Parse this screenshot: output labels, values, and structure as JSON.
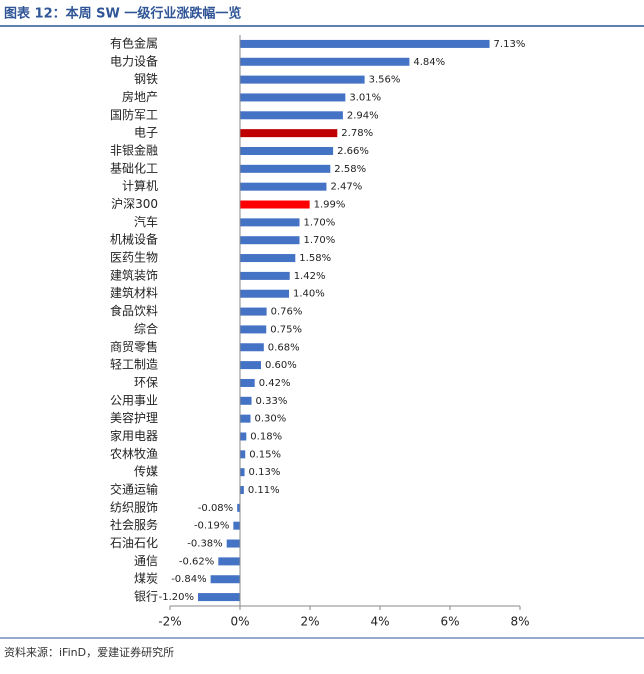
{
  "chart_data": {
    "type": "bar",
    "title": "图表 12：本周 SW 一级行业涨跌幅一览",
    "source": "资料来源：iFinD，爱建证券研究所",
    "categories": [
      "有色金属",
      "电力设备",
      "钢铁",
      "房地产",
      "国防军工",
      "电子",
      "非银金融",
      "基础化工",
      "计算机",
      "沪深300",
      "汽车",
      "机械设备",
      "医药生物",
      "建筑装饰",
      "建筑材料",
      "食品饮料",
      "综合",
      "商贸零售",
      "轻工制造",
      "环保",
      "公用事业",
      "美容护理",
      "家用电器",
      "农林牧渔",
      "传媒",
      "交通运输",
      "纺织服饰",
      "社会服务",
      "石油石化",
      "通信",
      "煤炭",
      "银行"
    ],
    "values": [
      7.13,
      4.84,
      3.56,
      3.01,
      2.94,
      2.78,
      2.66,
      2.58,
      2.47,
      1.99,
      1.7,
      1.7,
      1.58,
      1.42,
      1.4,
      0.76,
      0.75,
      0.68,
      0.6,
      0.42,
      0.33,
      0.3,
      0.18,
      0.15,
      0.13,
      0.11,
      -0.08,
      -0.19,
      -0.38,
      -0.62,
      -0.84,
      -1.2
    ],
    "value_labels": [
      "7.13%",
      "4.84%",
      "3.56%",
      "3.01%",
      "2.94%",
      "2.78%",
      "2.66%",
      "2.58%",
      "2.47%",
      "1.99%",
      "1.70%",
      "1.70%",
      "1.58%",
      "1.42%",
      "1.40%",
      "0.76%",
      "0.75%",
      "0.68%",
      "0.60%",
      "0.42%",
      "0.33%",
      "0.30%",
      "0.18%",
      "0.15%",
      "0.13%",
      "0.11%",
      "-0.08%",
      "-0.19%",
      "-0.38%",
      "-0.62%",
      "-0.84%",
      "-1.20%"
    ],
    "colors": [
      "#4472c4",
      "#4472c4",
      "#4472c4",
      "#4472c4",
      "#4472c4",
      "#c00000",
      "#4472c4",
      "#4472c4",
      "#4472c4",
      "#ff0000",
      "#4472c4",
      "#4472c4",
      "#4472c4",
      "#4472c4",
      "#4472c4",
      "#4472c4",
      "#4472c4",
      "#4472c4",
      "#4472c4",
      "#4472c4",
      "#4472c4",
      "#4472c4",
      "#4472c4",
      "#4472c4",
      "#4472c4",
      "#4472c4",
      "#4472c4",
      "#4472c4",
      "#4472c4",
      "#4472c4",
      "#4472c4",
      "#4472c4"
    ],
    "xlim": [
      -2,
      8
    ],
    "xticks": [
      {
        "value": -2,
        "label": "-2%"
      },
      {
        "value": 0,
        "label": "0%"
      },
      {
        "value": 2,
        "label": "2%"
      },
      {
        "value": 4,
        "label": "4%"
      },
      {
        "value": 6,
        "label": "6%"
      },
      {
        "value": 8,
        "label": "8%"
      }
    ]
  }
}
